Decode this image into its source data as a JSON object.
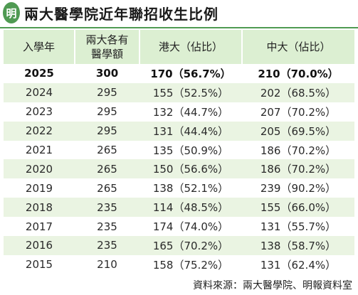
{
  "logo_char": "明",
  "title": "兩大醫學院近年聯招收生比例",
  "headers": {
    "year": "入學年",
    "quota_line1": "兩大各有",
    "quota_line2": "醫學額",
    "hku": "港大（佔比）",
    "cuhk": "中大（佔比）"
  },
  "rows": [
    {
      "year": "2025",
      "quota": "300",
      "hku": "170（56.7%）",
      "cuhk": "210（70.0%）"
    },
    {
      "year": "2024",
      "quota": "295",
      "hku": "155（52.5%）",
      "cuhk": "202（68.5%）"
    },
    {
      "year": "2023",
      "quota": "295",
      "hku": "132（44.7%）",
      "cuhk": "207（70.2%）"
    },
    {
      "year": "2022",
      "quota": "295",
      "hku": "131（44.4%）",
      "cuhk": "205（69.5%）"
    },
    {
      "year": "2021",
      "quota": "265",
      "hku": "135（50.9%）",
      "cuhk": "186（70.2%）"
    },
    {
      "year": "2020",
      "quota": "265",
      "hku": "150（56.6%）",
      "cuhk": "186（70.2%）"
    },
    {
      "year": "2019",
      "quota": "265",
      "hku": "138（52.1%）",
      "cuhk": "239（90.2%）"
    },
    {
      "year": "2018",
      "quota": "235",
      "hku": "114（48.5%）",
      "cuhk": "155（66.0%）"
    },
    {
      "year": "2017",
      "quota": "235",
      "hku": "174（74.0%）",
      "cuhk": "131（55.7%）"
    },
    {
      "year": "2016",
      "quota": "235",
      "hku": "165（70.2%）",
      "cuhk": "138（58.7%）"
    },
    {
      "year": "2015",
      "quota": "210",
      "hku": "158（75.2%）",
      "cuhk": "131（62.4%）"
    }
  ],
  "source": "資料來源：兩大醫學院、明報資料室",
  "colors": {
    "accent": "#4f9a52",
    "header_bg": "#dcefd2",
    "stripe_bg": "#eaf4e2"
  }
}
